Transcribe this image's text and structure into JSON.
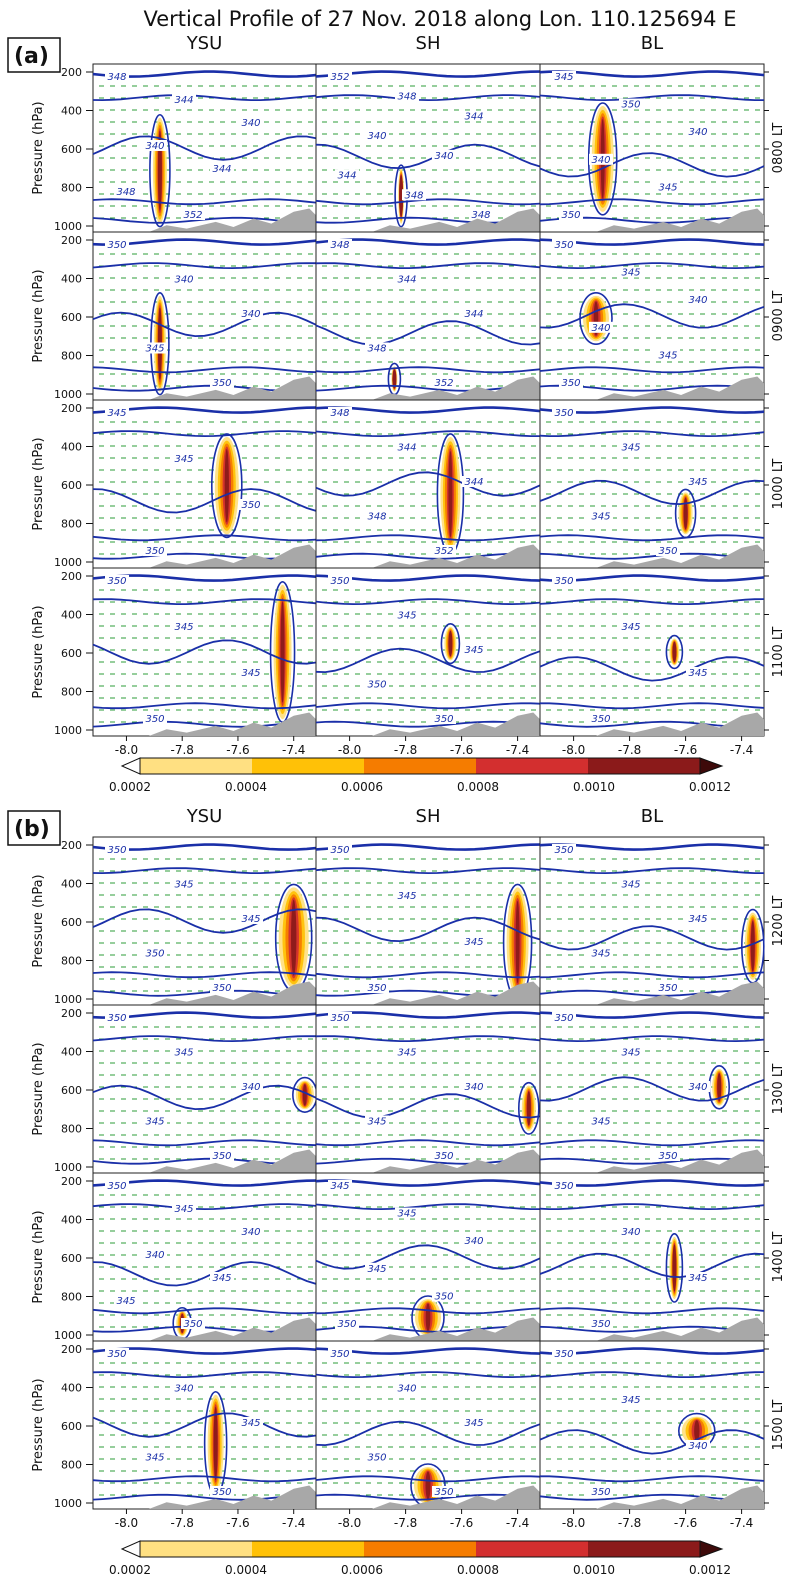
{
  "title": "Vertical Profile of 27 Nov. 2018 along Lon. 110.125694 E",
  "ylabel": "Pressure (hPa)",
  "columns": [
    "YSU",
    "SH",
    "BL"
  ],
  "panels": [
    {
      "label": "(a)",
      "times": [
        "0800 LT",
        "0900 LT",
        "1000 LT",
        "1100 LT"
      ]
    },
    {
      "label": "(b)",
      "times": [
        "1200 LT",
        "1300 LT",
        "1400 LT",
        "1500 LT"
      ]
    }
  ],
  "yticks": [
    "200",
    "400",
    "600",
    "800",
    "1000"
  ],
  "xticks": [
    "-8.0",
    "-7.8",
    "-7.6",
    "-7.4"
  ],
  "colorbar": {
    "ticks": [
      "0.0002",
      "0.0004",
      "0.0006",
      "0.0008",
      "0.0010",
      "0.0012"
    ],
    "colors": [
      "#fff9c4",
      "#ffe082",
      "#ffc107",
      "#f57c00",
      "#d32f2f",
      "#8b1a1a",
      "#3e0a0a"
    ]
  },
  "colors": {
    "contour": "#1a2fa8",
    "wind": "#2e9e3a",
    "terrain": "#a8a8a8"
  },
  "chart_data": {
    "type": "heatmap",
    "x_axis": {
      "ticks": [
        -8.0,
        -7.8,
        -7.6,
        -7.4
      ],
      "range": [
        -8.12,
        -7.32
      ]
    },
    "y_axis": {
      "label": "Pressure (hPa)",
      "ticks": [
        200,
        400,
        600,
        800,
        1000
      ],
      "range": [
        1000,
        130
      ],
      "inverted": true
    },
    "colorbar_range": [
      0.0002,
      0.0012
    ],
    "colorbar_extend": "both",
    "contour_labels": {
      "0800 LT": {
        "YSU": [
          "348",
          "344",
          "340",
          "340",
          "344",
          "348",
          "352"
        ],
        "SH": [
          "352",
          "348",
          "344",
          "340",
          "340",
          "344",
          "348",
          "348"
        ],
        "BL": [
          "345",
          "350",
          "340",
          "340",
          "345",
          "350"
        ]
      },
      "0900 LT": {
        "YSU": [
          "350",
          "340",
          "340",
          "345",
          "350"
        ],
        "SH": [
          "348",
          "344",
          "344",
          "348",
          "352"
        ],
        "BL": [
          "350",
          "345",
          "340",
          "340",
          "345",
          "350"
        ]
      },
      "1000 LT": {
        "YSU": [
          "345",
          "345",
          "350",
          "350"
        ],
        "SH": [
          "348",
          "344",
          "344",
          "348",
          "352"
        ],
        "BL": [
          "350",
          "345",
          "345",
          "345",
          "350"
        ]
      },
      "1100 LT": {
        "YSU": [
          "350",
          "345",
          "345",
          "350"
        ],
        "SH": [
          "350",
          "345",
          "345",
          "350",
          "350"
        ],
        "BL": [
          "350",
          "345",
          "345",
          "350"
        ]
      },
      "1200 LT": {
        "YSU": [
          "350",
          "345",
          "345",
          "350",
          "350"
        ],
        "SH": [
          "350",
          "345",
          "345",
          "350"
        ],
        "BL": [
          "350",
          "345",
          "345",
          "345",
          "350"
        ]
      },
      "1300 LT": {
        "YSU": [
          "350",
          "345",
          "340",
          "345",
          "350"
        ],
        "SH": [
          "350",
          "345",
          "340",
          "345",
          "350"
        ],
        "BL": [
          "350",
          "345",
          "340",
          "345",
          "350"
        ]
      },
      "1400 LT": {
        "YSU": [
          "350",
          "345",
          "340",
          "340",
          "345",
          "345",
          "350"
        ],
        "SH": [
          "345",
          "345",
          "340",
          "345",
          "350",
          "350"
        ],
        "BL": [
          "350",
          "340",
          "345",
          "350"
        ]
      },
      "1500 LT": {
        "YSU": [
          "350",
          "340",
          "345",
          "345",
          "350"
        ],
        "SH": [
          "350",
          "340",
          "345",
          "350",
          "350"
        ],
        "BL": [
          "350",
          "345",
          "340",
          "350"
        ]
      }
    }
  }
}
